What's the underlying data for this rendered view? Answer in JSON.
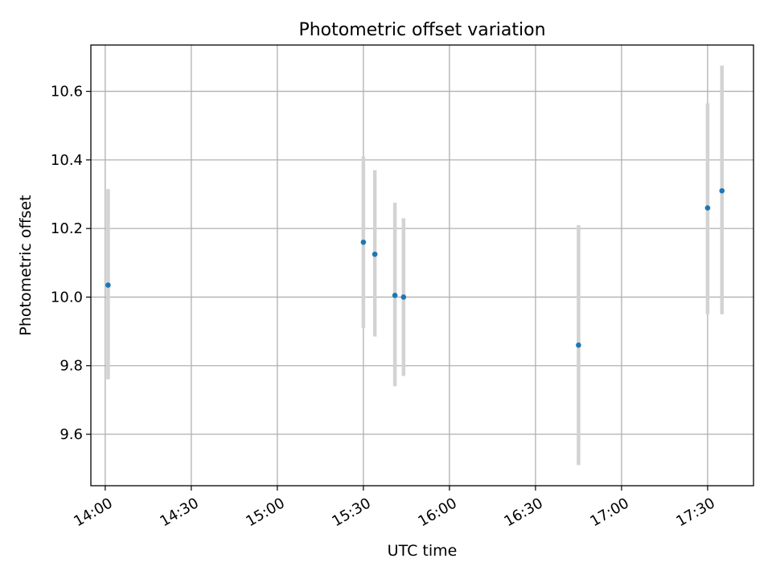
{
  "chart_data": {
    "type": "scatter",
    "title": "Photometric offset variation",
    "xlabel": "UTC time",
    "ylabel": "Photometric offset",
    "xlim": [
      "13:55",
      "17:46"
    ],
    "ylim": [
      9.45,
      10.735
    ],
    "x_ticks": [
      "14:00",
      "14:30",
      "15:00",
      "15:30",
      "16:00",
      "16:30",
      "17:00",
      "17:30"
    ],
    "y_ticks": [
      9.6,
      9.8,
      10.0,
      10.2,
      10.4,
      10.6
    ],
    "y_tick_labels": [
      "9.6",
      "9.8",
      "10.0",
      "10.2",
      "10.4",
      "10.6"
    ],
    "grid": true,
    "colors": {
      "point": "#1f77b4",
      "error_bar": "#d3d3d3",
      "grid": "#b0b0b0"
    },
    "series": [
      {
        "points": [
          {
            "x": "14:01",
            "y": 10.035,
            "ylow": 9.76,
            "yhigh": 10.315
          },
          {
            "x": "15:30",
            "y": 10.16,
            "ylow": 9.91,
            "yhigh": 10.41
          },
          {
            "x": "15:34",
            "y": 10.125,
            "ylow": 9.885,
            "yhigh": 10.37
          },
          {
            "x": "15:41",
            "y": 10.005,
            "ylow": 9.74,
            "yhigh": 10.275
          },
          {
            "x": "15:44",
            "y": 10.0,
            "ylow": 9.77,
            "yhigh": 10.23
          },
          {
            "x": "16:45",
            "y": 9.86,
            "ylow": 9.51,
            "yhigh": 10.21
          },
          {
            "x": "17:30",
            "y": 10.26,
            "ylow": 9.95,
            "yhigh": 10.565
          },
          {
            "x": "17:35",
            "y": 10.31,
            "ylow": 9.95,
            "yhigh": 10.675
          }
        ]
      }
    ]
  }
}
